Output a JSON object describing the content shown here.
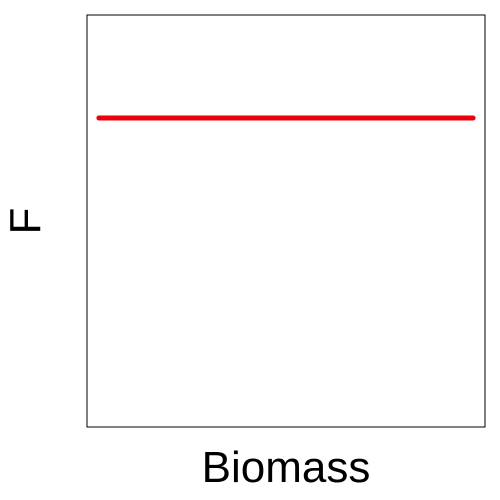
{
  "chart_data": {
    "type": "line",
    "title": "",
    "xlabel": "Biomass",
    "ylabel": "F",
    "xlim": [
      0,
      1
    ],
    "ylim": [
      0,
      1
    ],
    "grid": false,
    "axis_ticks": false,
    "series": [
      {
        "x": [
          0.03,
          0.97
        ],
        "y": [
          0.75,
          0.75
        ],
        "color": "#e8000b"
      }
    ]
  }
}
